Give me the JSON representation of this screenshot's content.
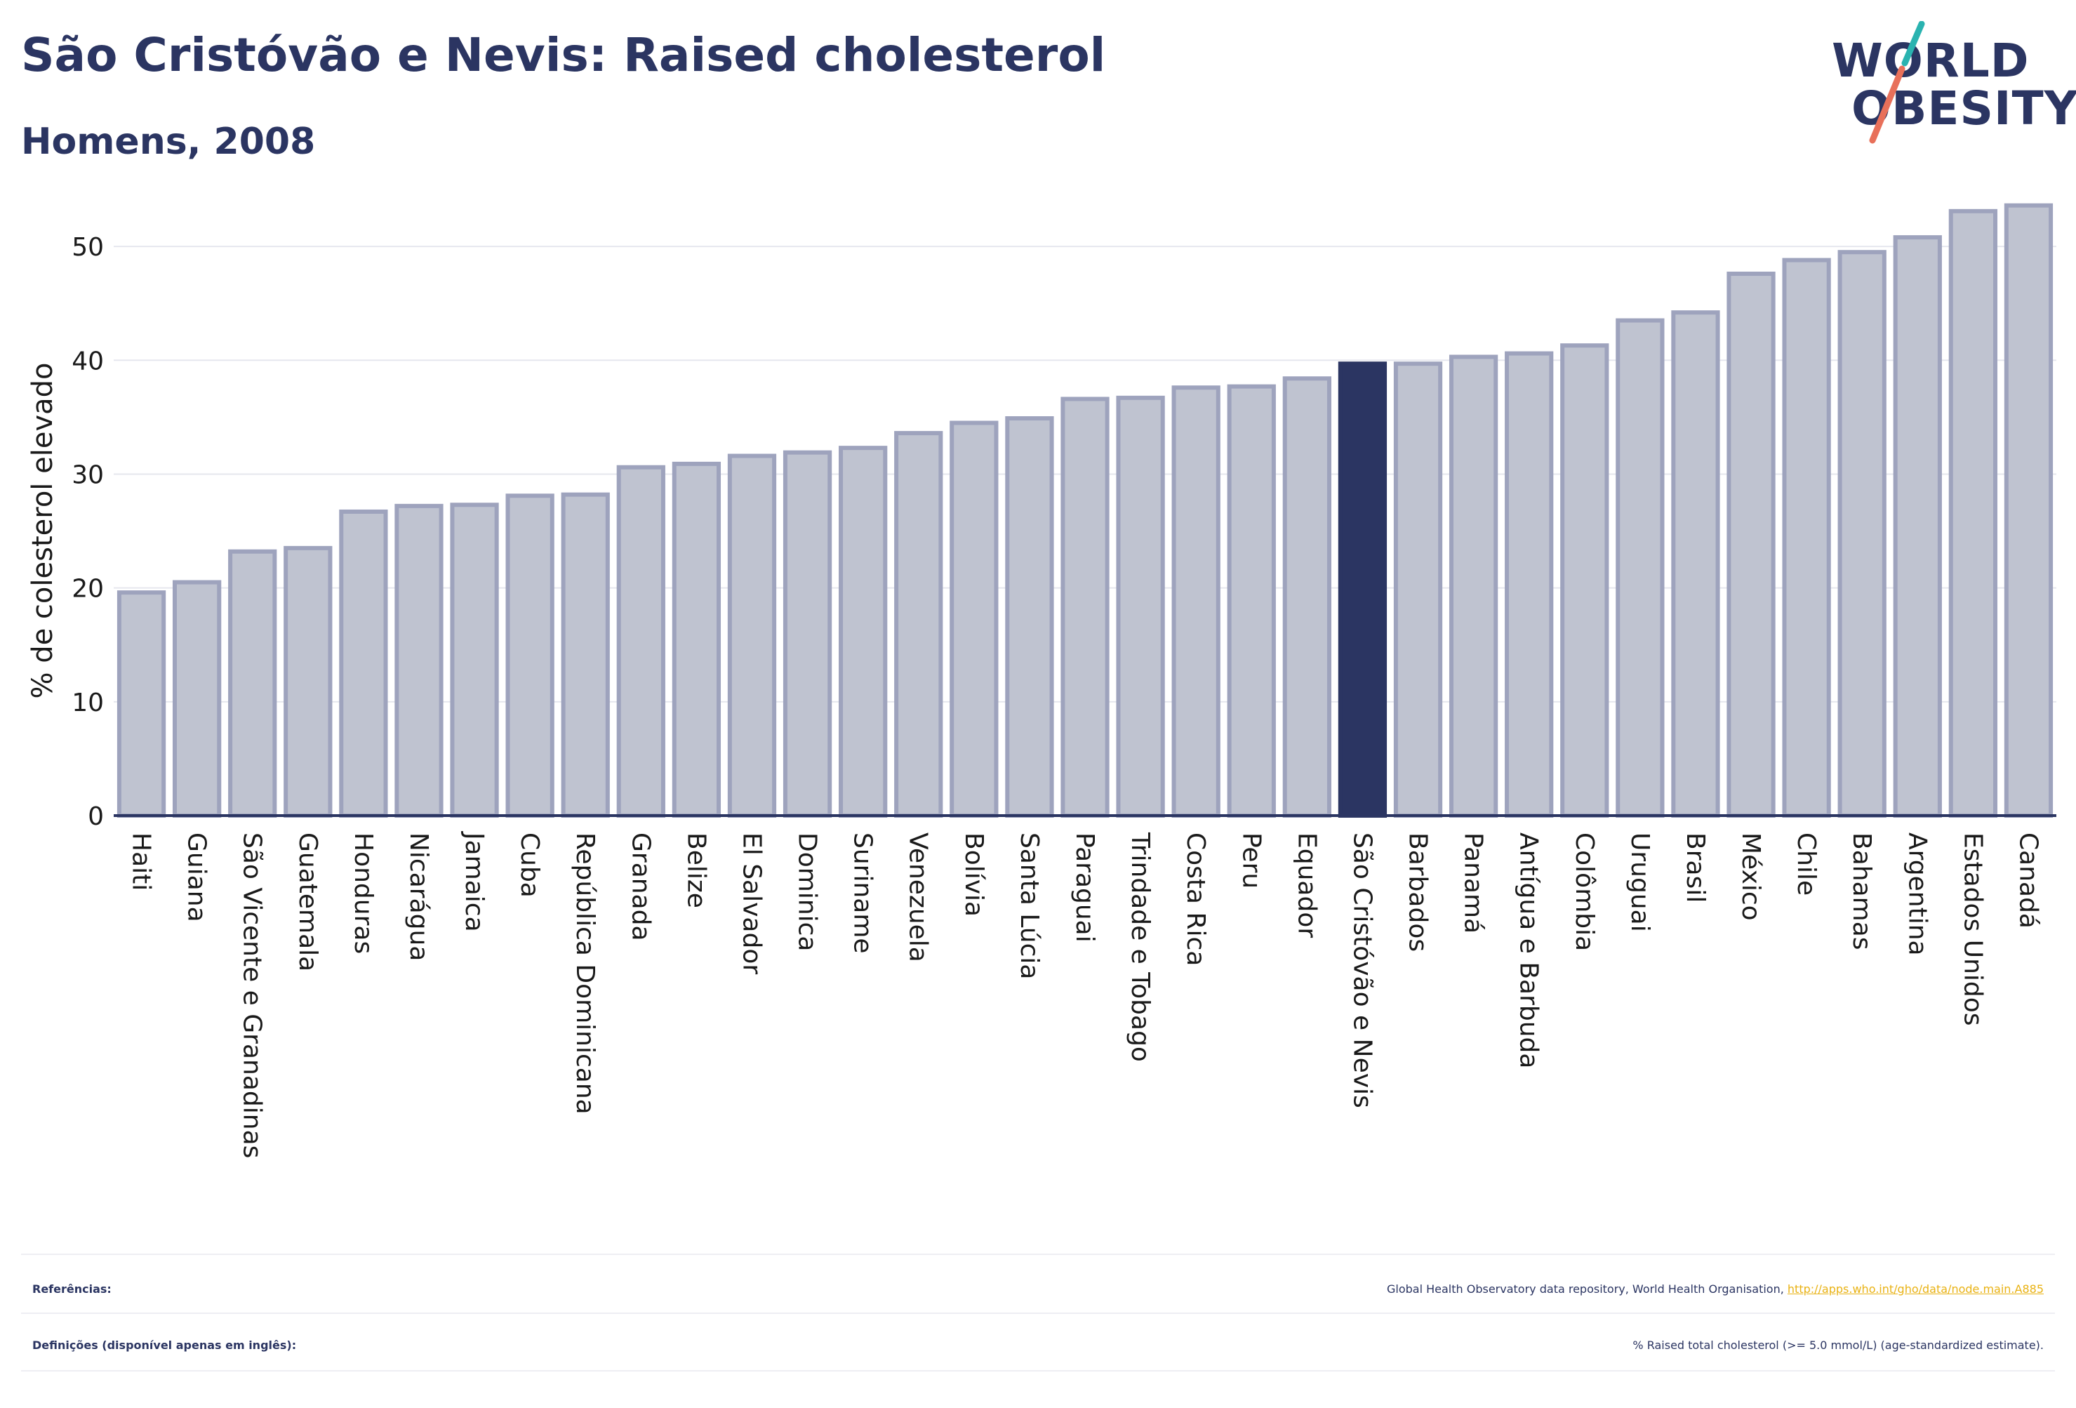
{
  "header": {
    "title": "São Cristóvão e Nevis: Raised cholesterol",
    "subtitle": "Homens, 2008"
  },
  "logo": {
    "line1": "WORLD",
    "line2": "OBESITY",
    "slash_colors": [
      "#2ab3b0",
      "#e8705a"
    ]
  },
  "colors": {
    "bar": "#bfc3d0",
    "bar_border": "#9ea3bd",
    "highlight": "#2b3562",
    "axis": "#2b3562",
    "grid": "#e6e7ee",
    "link": "#e9b213"
  },
  "chart_data": {
    "type": "bar",
    "title": "São Cristóvão e Nevis: Raised cholesterol",
    "subtitle": "Homens, 2008",
    "xlabel": "",
    "ylabel": "% de colesterol elevado",
    "ylim": [
      0,
      55
    ],
    "yticks": [
      0,
      10,
      20,
      30,
      40,
      50
    ],
    "grid": true,
    "highlight": "São Cristóvão e Nevis",
    "categories": [
      "Haiti",
      "Guiana",
      "São Vicente e Granadinas",
      "Guatemala",
      "Honduras",
      "Nicarágua",
      "Jamaica",
      "Cuba",
      "República Dominicana",
      "Granada",
      "Belize",
      "El Salvador",
      "Dominica",
      "Suriname",
      "Venezuela",
      "Bolívia",
      "Santa Lúcia",
      "Paraguai",
      "Trindade e Tobago",
      "Costa Rica",
      "Peru",
      "Equador",
      "São Cristóvão e Nevis",
      "Barbados",
      "Panamá",
      "Antígua e Barbuda",
      "Colômbia",
      "Uruguai",
      "Brasil",
      "México",
      "Chile",
      "Bahamas",
      "Argentina",
      "Estados Unidos",
      "Canadá"
    ],
    "values": [
      19.6,
      20.5,
      23.2,
      23.5,
      26.7,
      27.2,
      27.3,
      28.1,
      28.2,
      30.6,
      30.9,
      31.6,
      31.9,
      32.3,
      33.6,
      34.5,
      34.9,
      36.6,
      36.7,
      37.6,
      37.7,
      38.4,
      39.7,
      39.7,
      40.3,
      40.6,
      41.3,
      43.5,
      44.2,
      47.6,
      48.8,
      49.5,
      50.8,
      53.1,
      53.6
    ]
  },
  "footer": {
    "references_label": "Referências:",
    "references_text": "Global Health Observatory data repository, World Health Organisation,",
    "references_link": "http://apps.who.int/gho/data/node.main.A885",
    "definitions_label": "Definições (disponível apenas em inglês):",
    "definitions_text": "% Raised total cholesterol (>= 5.0 mmol/L) (age-standardized estimate)."
  }
}
